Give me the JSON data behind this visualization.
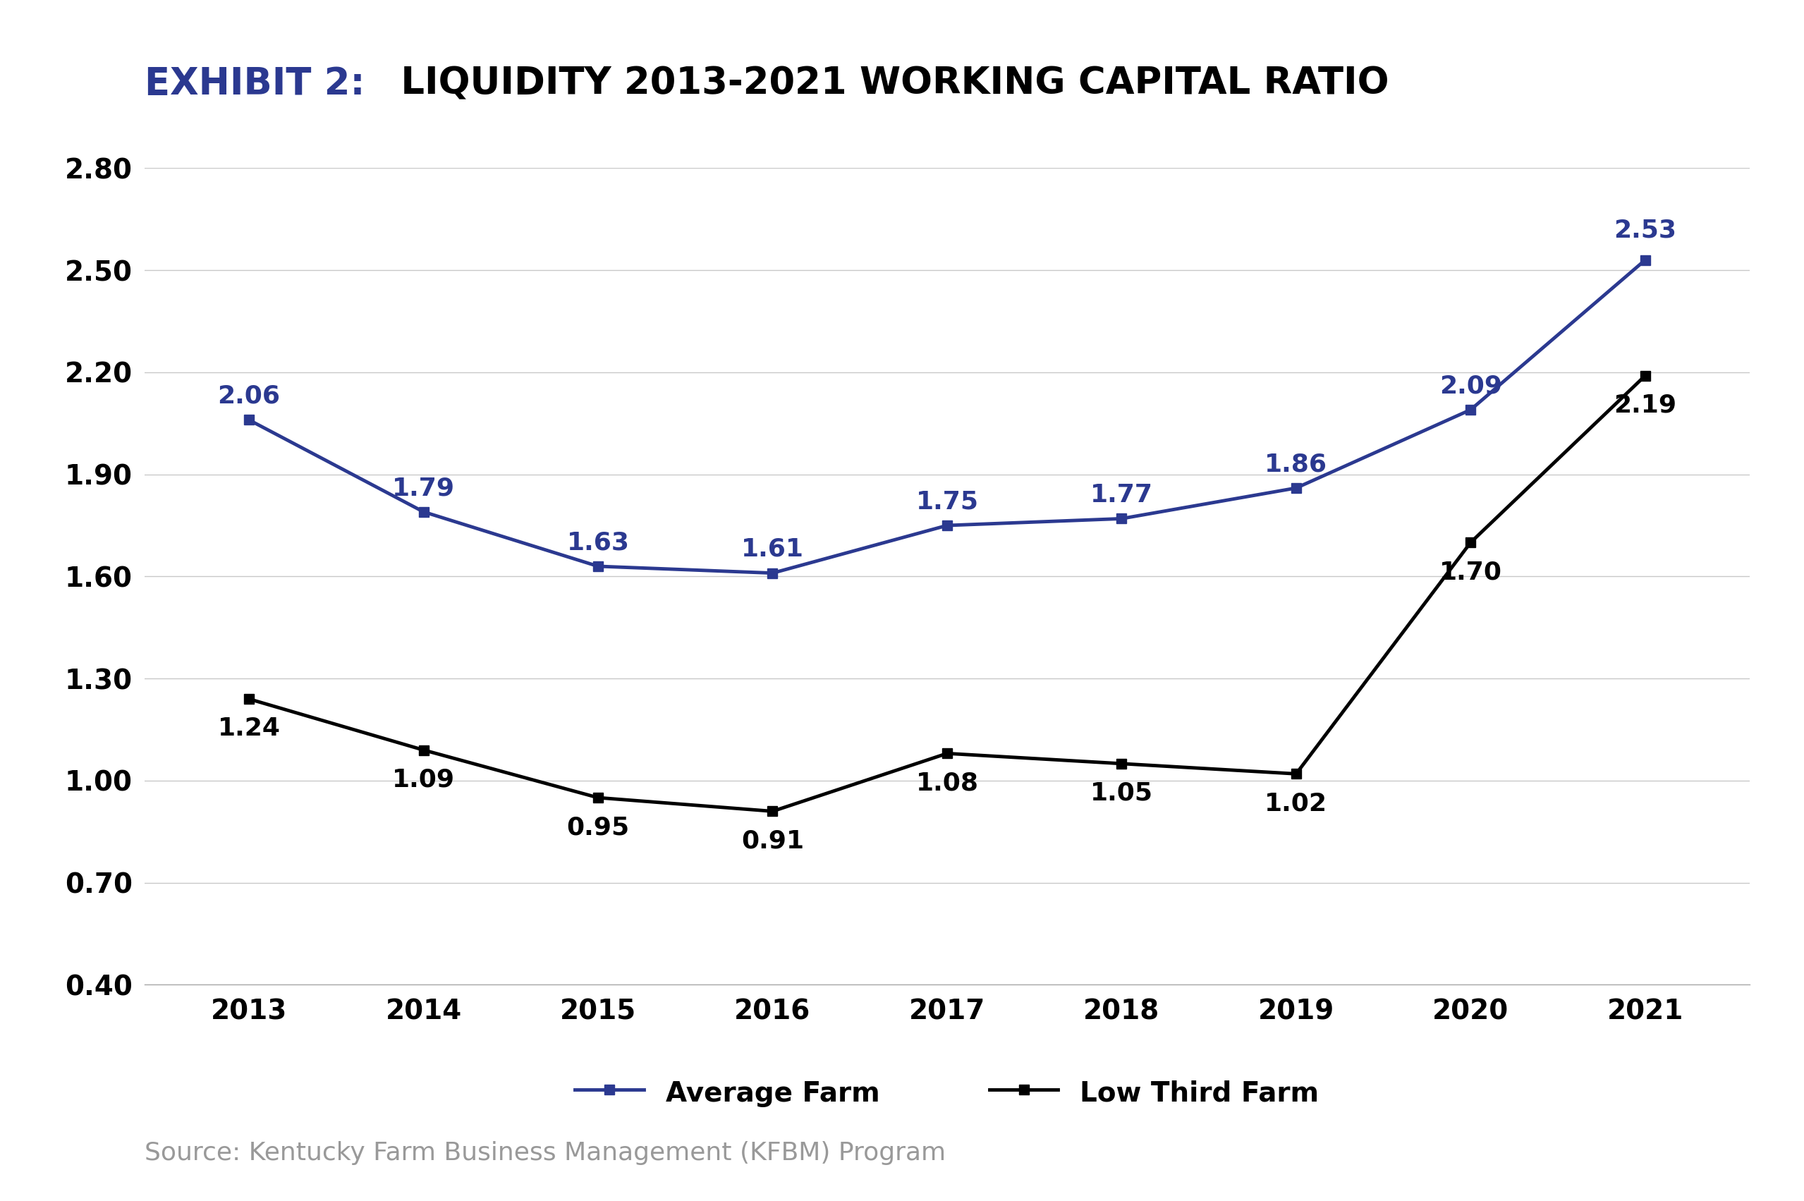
{
  "title_exhibit": "EXHIBIT 2:",
  "title_main": " LIQUIDITY 2013-2021 WORKING CAPITAL RATIO",
  "title_exhibit_color": "#2B3990",
  "title_main_color": "#000000",
  "years": [
    2013,
    2014,
    2015,
    2016,
    2017,
    2018,
    2019,
    2020,
    2021
  ],
  "avg_farm": [
    2.06,
    1.79,
    1.63,
    1.61,
    1.75,
    1.77,
    1.86,
    2.09,
    2.53
  ],
  "low_third": [
    1.24,
    1.09,
    0.95,
    0.91,
    1.08,
    1.05,
    1.02,
    1.7,
    2.19
  ],
  "avg_farm_color": "#2B3990",
  "low_third_color": "#000000",
  "avg_farm_label": "Average Farm",
  "low_third_label": "Low Third Farm",
  "ylim": [
    0.4,
    2.8
  ],
  "yticks": [
    0.4,
    0.7,
    1.0,
    1.3,
    1.6,
    1.9,
    2.2,
    2.5,
    2.8
  ],
  "source_text": "Source: Kentucky Farm Business Management (KFBM) Program",
  "background_color": "#ffffff",
  "grid_color": "#c8c8c8",
  "line_width": 3.5,
  "marker_size": 10,
  "title_fontsize": 38,
  "axis_fontsize": 28,
  "label_fontsize": 26,
  "legend_fontsize": 28,
  "source_fontsize": 26,
  "avg_label_offsets_x": [
    0,
    0,
    0,
    0,
    0,
    0,
    0,
    0,
    0
  ],
  "avg_label_offsets_y": [
    12,
    12,
    12,
    12,
    12,
    12,
    12,
    12,
    18
  ],
  "low_label_offsets_x": [
    0,
    0,
    0,
    0,
    0,
    0,
    0,
    0,
    0
  ],
  "low_label_offsets_y": [
    -18,
    -18,
    -18,
    -18,
    -18,
    -18,
    -18,
    -18,
    -18
  ]
}
